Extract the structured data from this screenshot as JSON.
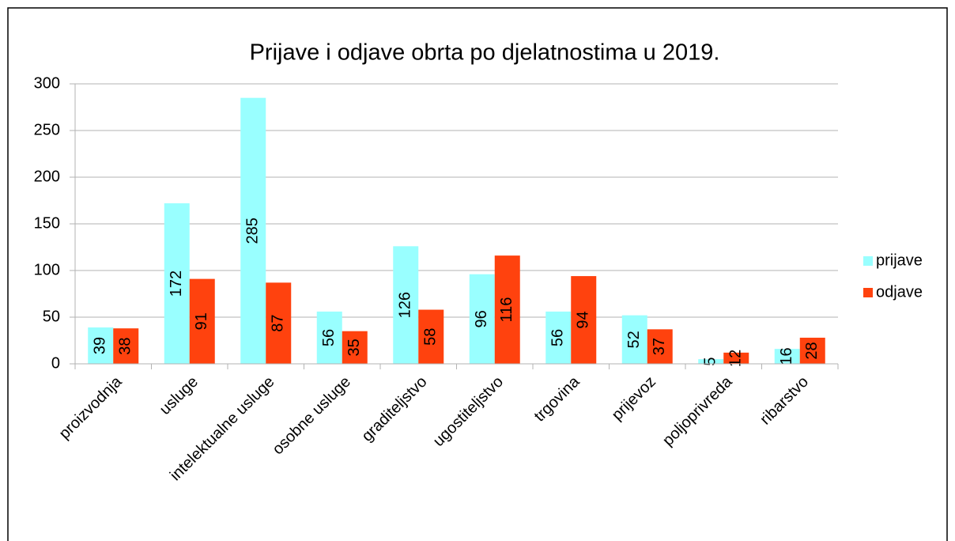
{
  "chart_data": {
    "type": "bar",
    "title": "Prijave i odjave obrta po djelatnostima u 2019.",
    "categories": [
      "proizvodnja",
      "usluge",
      "intelektualne usluge",
      "osobne usluge",
      "graditeljstvo",
      "ugostiteljstvo",
      "trgovina",
      "prijevoz",
      "poljoprivreda",
      "ribarstvo"
    ],
    "series": [
      {
        "name": "prijave",
        "color": "#99ffff",
        "values": [
          39,
          172,
          285,
          56,
          126,
          96,
          56,
          52,
          5,
          16
        ]
      },
      {
        "name": "odjave",
        "color": "#ff420e",
        "values": [
          38,
          91,
          87,
          35,
          58,
          116,
          94,
          37,
          12,
          28
        ]
      }
    ],
    "ylim": [
      0,
      300
    ],
    "yticks": [
      0,
      50,
      100,
      150,
      200,
      250,
      300
    ],
    "grid": true,
    "legend": "right"
  }
}
